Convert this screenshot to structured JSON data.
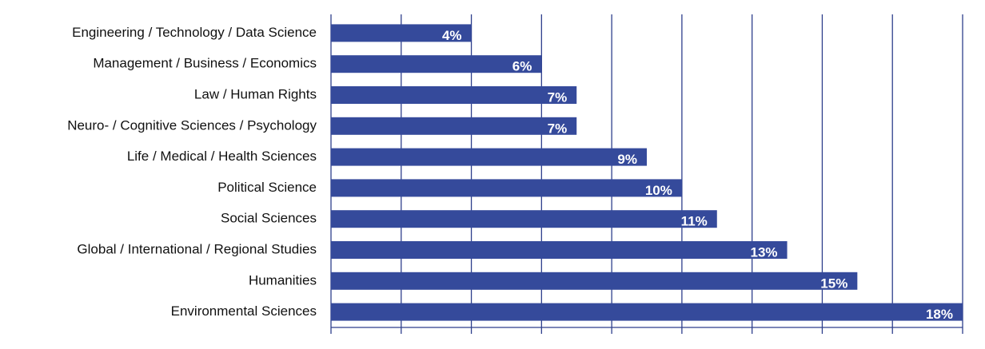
{
  "chart_data": {
    "type": "bar",
    "orientation": "horizontal",
    "categories": [
      "Engineering / Technology / Data Science",
      "Management / Business / Economics",
      "Law / Human Rights",
      "Neuro- / Cognitive Sciences / Psychology",
      "Life / Medical / Health Sciences",
      "Political Science",
      "Social Sciences",
      "Global / International / Regional Studies",
      "Humanities",
      "Environmental Sciences"
    ],
    "values": [
      4,
      6,
      7,
      7,
      9,
      10,
      11,
      13,
      15,
      18
    ],
    "value_labels": [
      "4%",
      "6%",
      "7%",
      "7%",
      "9%",
      "10%",
      "11%",
      "13%",
      "15%",
      "18%"
    ],
    "color": "#354a9b",
    "xlim": [
      0,
      18
    ],
    "xticks": [
      0,
      2,
      4,
      6,
      8,
      10,
      12,
      14,
      16,
      18
    ],
    "grid": true
  }
}
